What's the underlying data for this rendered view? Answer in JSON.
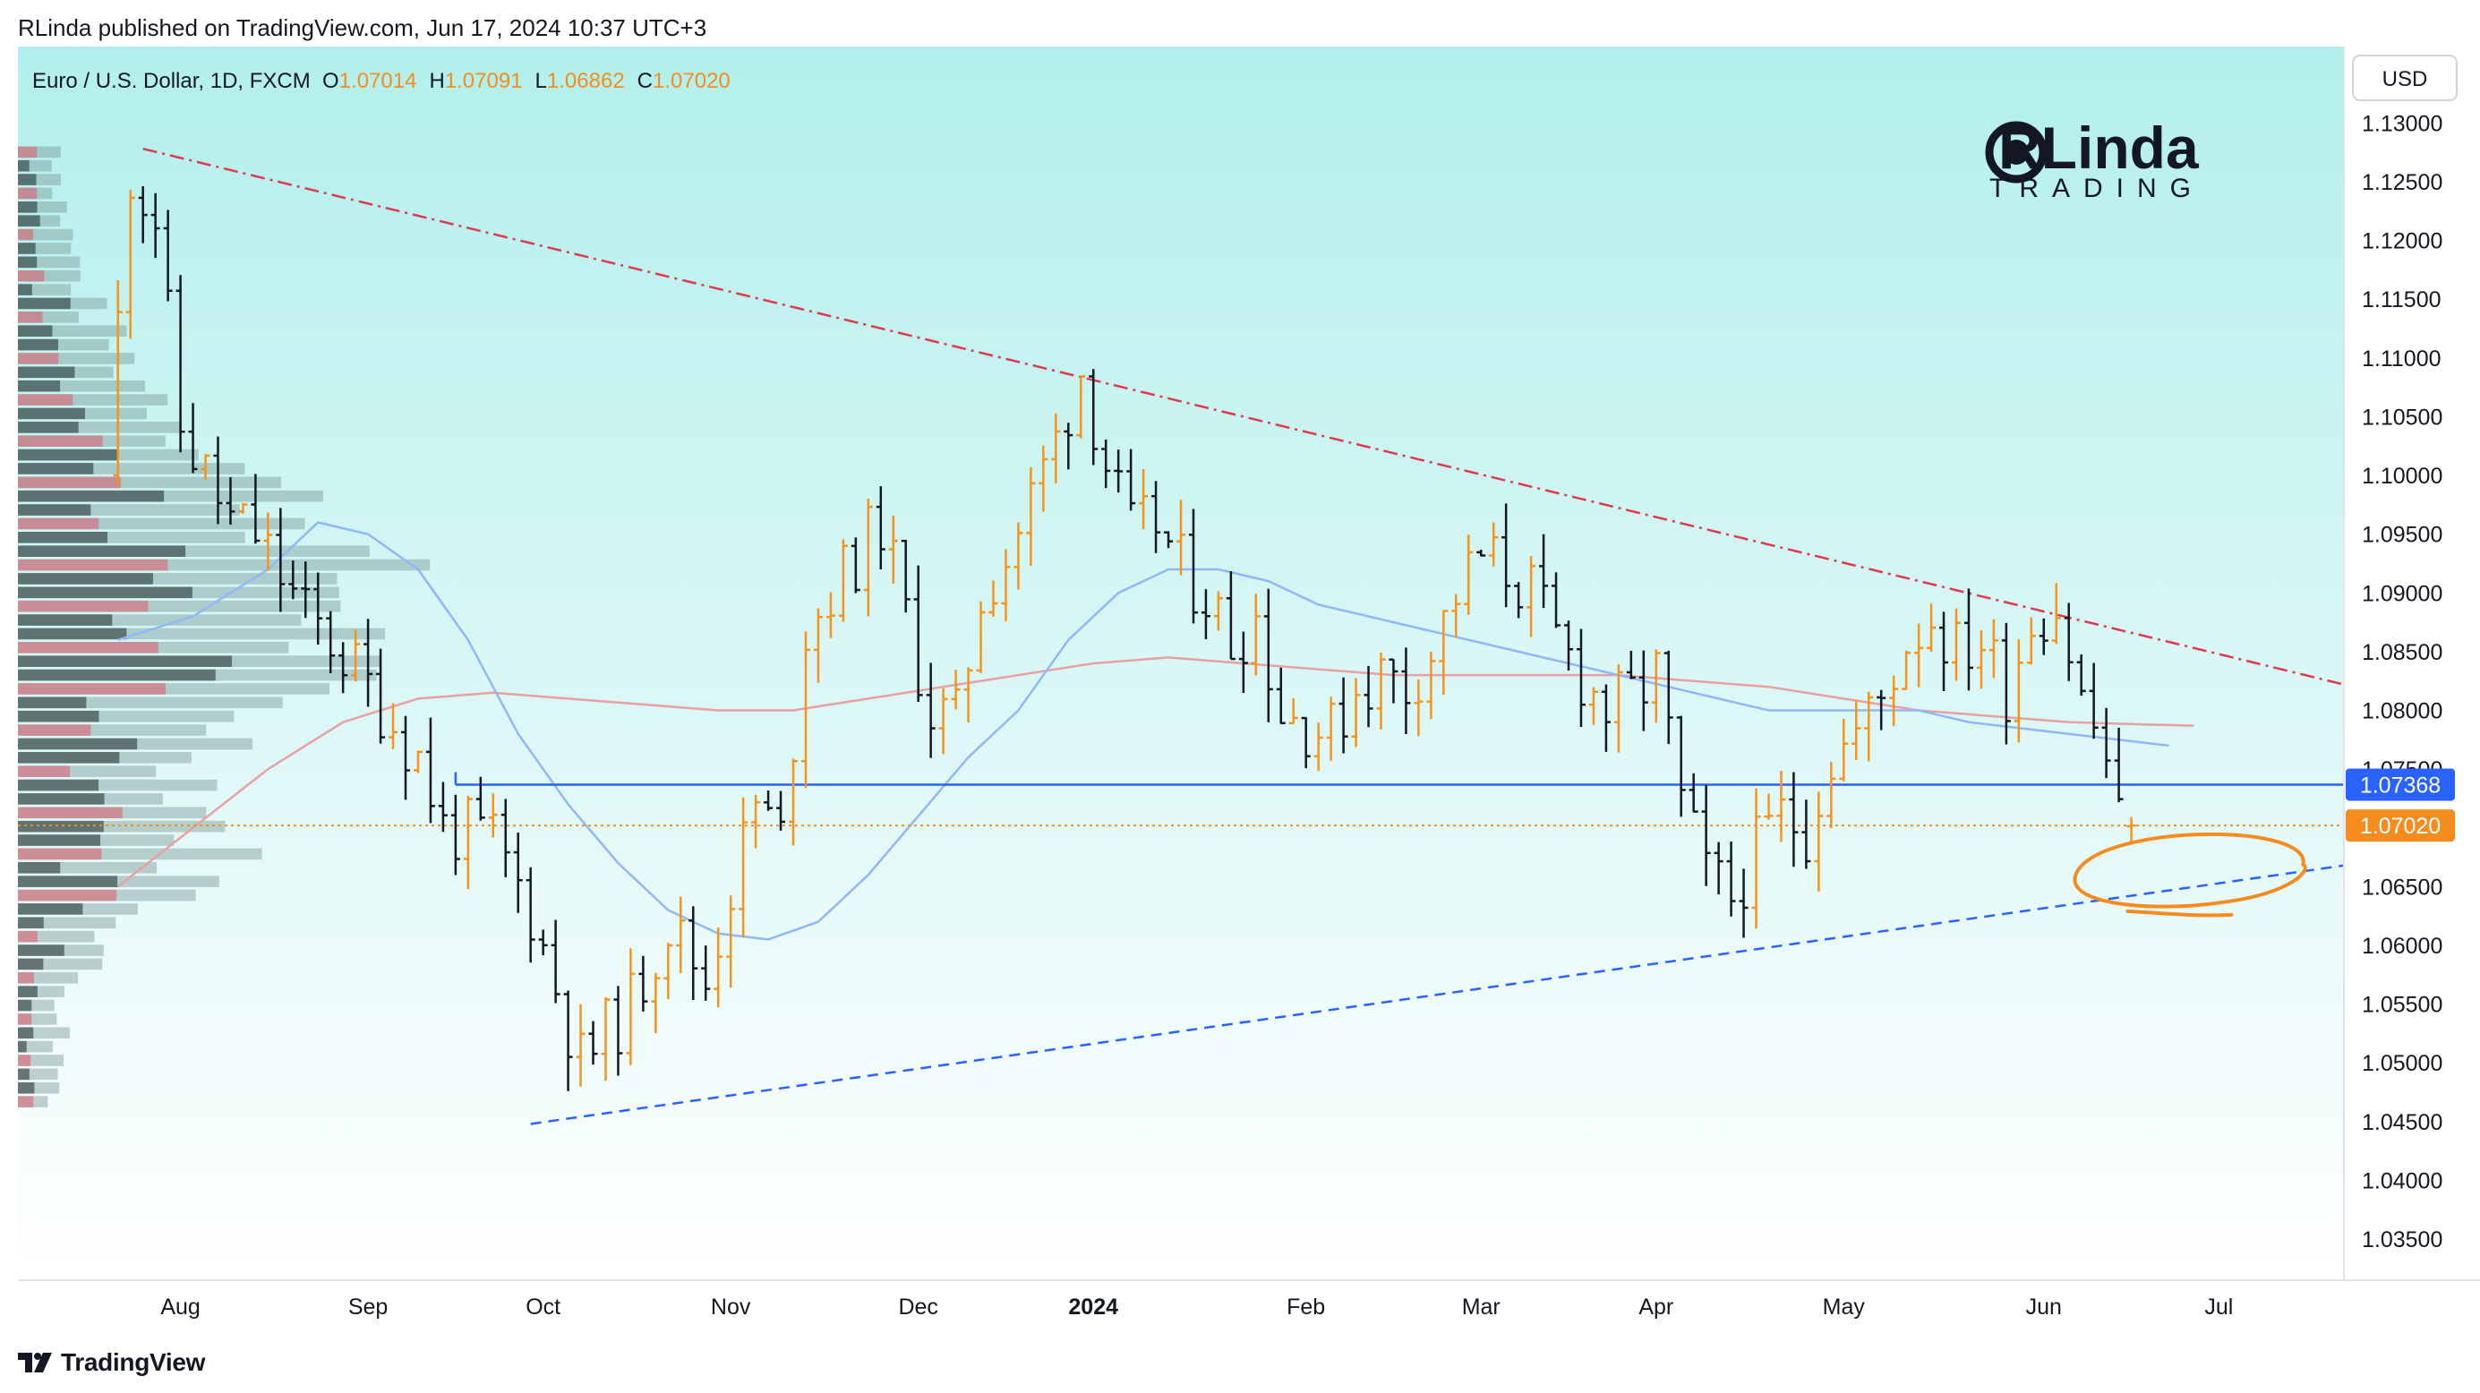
{
  "header": {
    "publisher": "RLinda published on TradingView.com, Jun 17, 2024 10:37 UTC+3"
  },
  "footer": {
    "brand": "TradingView"
  },
  "logo": {
    "line1": "RLinda",
    "line2": "TRADING"
  },
  "currency_button": "USD",
  "colors": {
    "bull": "#f7931a",
    "bear": "#131722",
    "resistance": "#e0394b",
    "support": "#2962ff",
    "ma_short": "#90b8f8",
    "ma_long": "#e8a0a0",
    "level": "#2962ff",
    "price": "#f68b1e",
    "bg_top": "#b2efec",
    "bg_bottom": "#ffffff"
  },
  "chart_data": {
    "type": "candlestick",
    "symbol": "Euro / U.S. Dollar, 1D, FXCM",
    "ohlc": {
      "o_label": "O",
      "o": "1.07014",
      "h_label": "H",
      "h": "1.07091",
      "l_label": "L",
      "l": "1.06862",
      "c_label": "C",
      "c": "1.07020"
    },
    "y_range": [
      1.0315,
      1.1365
    ],
    "y_ticks": [
      "1.13000",
      "1.12500",
      "1.12000",
      "1.11500",
      "1.11000",
      "1.10500",
      "1.10000",
      "1.09500",
      "1.09000",
      "1.08500",
      "1.08000",
      "1.07500",
      "1.07000",
      "1.06500",
      "1.06000",
      "1.05500",
      "1.05000",
      "1.04500",
      "1.04000",
      "1.03500"
    ],
    "x_labels": [
      {
        "label": "Aug",
        "day": 5
      },
      {
        "label": "Sep",
        "day": 20
      },
      {
        "label": "Oct",
        "day": 34
      },
      {
        "label": "Nov",
        "day": 49
      },
      {
        "label": "Dec",
        "day": 64
      },
      {
        "label": "2024",
        "day": 78,
        "bold": true
      },
      {
        "label": "Feb",
        "day": 95
      },
      {
        "label": "Mar",
        "day": 109
      },
      {
        "label": "Apr",
        "day": 123
      },
      {
        "label": "May",
        "day": 138
      },
      {
        "label": "Jun",
        "day": 154
      },
      {
        "label": "Jul",
        "day": 168
      }
    ],
    "x_domain": [
      -8,
      178
    ],
    "waypoints": [
      [
        0,
        1.1
      ],
      [
        2,
        1.126
      ],
      [
        4,
        1.122
      ],
      [
        6,
        1.104
      ],
      [
        10,
        1.096
      ],
      [
        12,
        1.095
      ],
      [
        16,
        1.088
      ],
      [
        18,
        1.086
      ],
      [
        21,
        1.082
      ],
      [
        23,
        1.079
      ],
      [
        25,
        1.076
      ],
      [
        27,
        1.07
      ],
      [
        31,
        1.069
      ],
      [
        34,
        1.063
      ],
      [
        38,
        1.05
      ],
      [
        42,
        1.055
      ],
      [
        45,
        1.062
      ],
      [
        48,
        1.057
      ],
      [
        50,
        1.065
      ],
      [
        52,
        1.072
      ],
      [
        54,
        1.069
      ],
      [
        56,
        1.087
      ],
      [
        58,
        1.09
      ],
      [
        60,
        1.093
      ],
      [
        62,
        1.096
      ],
      [
        64,
        1.088
      ],
      [
        66,
        1.08
      ],
      [
        68,
        1.079
      ],
      [
        70,
        1.09
      ],
      [
        72,
        1.093
      ],
      [
        74,
        1.098
      ],
      [
        76,
        1.103
      ],
      [
        78,
        1.109
      ],
      [
        80,
        1.101
      ],
      [
        82,
        1.095
      ],
      [
        84,
        1.096
      ],
      [
        86,
        1.092
      ],
      [
        88,
        1.09
      ],
      [
        90,
        1.086
      ],
      [
        92,
        1.088
      ],
      [
        94,
        1.08
      ],
      [
        96,
        1.079
      ],
      [
        98,
        1.078
      ],
      [
        100,
        1.082
      ],
      [
        102,
        1.083
      ],
      [
        104,
        1.082
      ],
      [
        106,
        1.085
      ],
      [
        108,
        1.09
      ],
      [
        110,
        1.093
      ],
      [
        112,
        1.092
      ],
      [
        114,
        1.09
      ],
      [
        116,
        1.086
      ],
      [
        118,
        1.083
      ],
      [
        120,
        1.08
      ],
      [
        122,
        1.081
      ],
      [
        124,
        1.083
      ],
      [
        126,
        1.072
      ],
      [
        128,
        1.066
      ],
      [
        130,
        1.064
      ],
      [
        132,
        1.068
      ],
      [
        134,
        1.071
      ],
      [
        136,
        1.07
      ],
      [
        138,
        1.076
      ],
      [
        140,
        1.078
      ],
      [
        142,
        1.081
      ],
      [
        144,
        1.086
      ],
      [
        146,
        1.088
      ],
      [
        148,
        1.085
      ],
      [
        150,
        1.086
      ],
      [
        152,
        1.082
      ],
      [
        154,
        1.088
      ],
      [
        156,
        1.089
      ],
      [
        158,
        1.081
      ],
      [
        160,
        1.076
      ],
      [
        161,
        1.0702
      ]
    ],
    "last_bar": {
      "day": 161,
      "open": 1.07014,
      "high": 1.07091,
      "low": 1.06862,
      "close": 1.0702
    },
    "resistance_line": {
      "from": [
        2,
        1.1278
      ],
      "to": [
        178,
        1.0822
      ]
    },
    "support_line": {
      "from": [
        33,
        1.0448
      ],
      "to": [
        178,
        1.0668
      ]
    },
    "level_line": {
      "from_day": 27,
      "price": 1.07368,
      "label": "1.07368"
    },
    "price_line": {
      "price": 1.0702,
      "label": "1.07020"
    },
    "ma_short": [
      [
        0,
        1.086
      ],
      [
        6,
        1.088
      ],
      [
        12,
        1.092
      ],
      [
        16,
        1.096
      ],
      [
        20,
        1.095
      ],
      [
        24,
        1.092
      ],
      [
        28,
        1.086
      ],
      [
        32,
        1.078
      ],
      [
        36,
        1.072
      ],
      [
        40,
        1.067
      ],
      [
        44,
        1.063
      ],
      [
        48,
        1.061
      ],
      [
        52,
        1.0605
      ],
      [
        56,
        1.062
      ],
      [
        60,
        1.066
      ],
      [
        64,
        1.071
      ],
      [
        68,
        1.076
      ],
      [
        72,
        1.08
      ],
      [
        76,
        1.086
      ],
      [
        80,
        1.09
      ],
      [
        84,
        1.092
      ],
      [
        88,
        1.092
      ],
      [
        92,
        1.091
      ],
      [
        96,
        1.089
      ],
      [
        100,
        1.088
      ],
      [
        104,
        1.087
      ],
      [
        108,
        1.086
      ],
      [
        112,
        1.085
      ],
      [
        116,
        1.084
      ],
      [
        120,
        1.083
      ],
      [
        124,
        1.082
      ],
      [
        128,
        1.081
      ],
      [
        132,
        1.08
      ],
      [
        136,
        1.08
      ],
      [
        140,
        1.08
      ],
      [
        144,
        1.08
      ],
      [
        148,
        1.079
      ],
      [
        152,
        1.0785
      ],
      [
        156,
        1.078
      ],
      [
        160,
        1.0775
      ],
      [
        164,
        1.077
      ]
    ],
    "ma_long": [
      [
        0,
        1.065
      ],
      [
        6,
        1.07
      ],
      [
        12,
        1.075
      ],
      [
        18,
        1.079
      ],
      [
        24,
        1.081
      ],
      [
        30,
        1.0815
      ],
      [
        36,
        1.081
      ],
      [
        42,
        1.0805
      ],
      [
        48,
        1.08
      ],
      [
        54,
        1.08
      ],
      [
        60,
        1.081
      ],
      [
        66,
        1.082
      ],
      [
        72,
        1.083
      ],
      [
        78,
        1.084
      ],
      [
        84,
        1.0845
      ],
      [
        90,
        1.084
      ],
      [
        96,
        1.0835
      ],
      [
        102,
        1.083
      ],
      [
        108,
        1.083
      ],
      [
        114,
        1.083
      ],
      [
        120,
        1.083
      ],
      [
        126,
        1.0825
      ],
      [
        132,
        1.082
      ],
      [
        138,
        1.081
      ],
      [
        144,
        1.08
      ],
      [
        150,
        1.0795
      ],
      [
        156,
        1.079
      ],
      [
        162,
        1.0788
      ],
      [
        166,
        1.0787
      ]
    ],
    "volume_profile_rows": 70
  }
}
